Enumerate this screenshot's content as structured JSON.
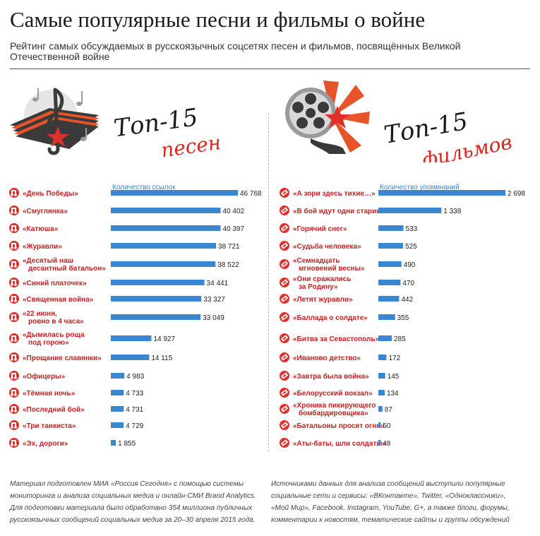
{
  "title": "Самые популярные песни и фильмы о войне",
  "subtitle": "Рейтинг самых обсуждаемых в русскоязычных соцсетях песен и фильмов, посвящённых Великой Отечественной войне",
  "songs_brand": {
    "line1": "Топ-15",
    "line2": "песен"
  },
  "films_brand": {
    "line1": "Топ-15",
    "line2": "фильмов"
  },
  "colors": {
    "bar": "#3a86d0",
    "accent": "#e0302a",
    "text": "#c52020"
  },
  "icons": {
    "song": "music-note-icon",
    "film": "film-reel-icon"
  },
  "chart_data": [
    {
      "type": "bar",
      "orientation": "horizontal",
      "subject": "songs",
      "series_label": "Количество ссылок",
      "categories": [
        [
          "«День Победы»"
        ],
        [
          "«Смуглянка»"
        ],
        [
          "«Катюша»"
        ],
        [
          "«Журавли»"
        ],
        [
          "«Десятый наш",
          "десантный батальон»"
        ],
        [
          "«Синий платочек»"
        ],
        [
          "«Священная война»"
        ],
        [
          "«22 июня,",
          "ровно в 4 часа»"
        ],
        [
          "«Дымилась роща",
          "под горою»"
        ],
        [
          "«Прощание славянки»"
        ],
        [
          "«Офицеры»"
        ],
        [
          "«Тёмная ночь»"
        ],
        [
          "«Последний бой»"
        ],
        [
          "«Три танкиста»"
        ],
        [
          "«Эх, дороги»"
        ]
      ],
      "values": [
        46768,
        40402,
        40397,
        38721,
        38522,
        34441,
        33327,
        33049,
        14927,
        14115,
        4983,
        4733,
        4731,
        4729,
        1855
      ],
      "value_labels": [
        "46 768",
        "40 402",
        "40 397",
        "38 721",
        "38 522",
        "34 441",
        "33 327",
        "33 049",
        "14 927",
        "14 115",
        "4 983",
        "4 733",
        "4 731",
        "4 729",
        "1 855"
      ]
    },
    {
      "type": "bar",
      "orientation": "horizontal",
      "subject": "films",
      "series_label": "Количество упоминаний",
      "categories": [
        [
          "«А зори здесь тихие…»"
        ],
        [
          "«В бой идут одни старики»"
        ],
        [
          "«Горячий снег»"
        ],
        [
          "«Судьба человека»"
        ],
        [
          "«Семнадцать",
          "мгновений весны»"
        ],
        [
          "«Они сражались",
          "за Родину»"
        ],
        [
          "«Летят журавли»"
        ],
        [
          "«Баллада о солдате»"
        ],
        [
          "«Битва за Севастополь»"
        ],
        [
          "«Иваново детство»"
        ],
        [
          "«Завтра была война»"
        ],
        [
          "«Белорусский вокзал»"
        ],
        [
          "«Хроника пикирующего",
          "бомбардировщика»"
        ],
        [
          "«Батальоны просят огня»"
        ],
        [
          "«Аты-баты, шли солдаты»"
        ]
      ],
      "values": [
        2698,
        1338,
        533,
        525,
        490,
        470,
        442,
        355,
        285,
        172,
        145,
        134,
        87,
        50,
        48
      ],
      "value_labels": [
        "2 698",
        "1 338",
        "533",
        "525",
        "490",
        "470",
        "442",
        "355",
        "285",
        "172",
        "145",
        "134",
        "87",
        "50",
        "48"
      ]
    }
  ],
  "footer": {
    "left": "Материал подготовлен МИА «Россия Сегодня» с помощью системы мониторинга и анализа социальных медиа и онлайн-СМИ Brand Analytics. Для подготовки материала было обработано 354 миллиона публичных русскоязычных сообщений социальных медиа за 20–30 апреля 2015 года.",
    "right": "Источниками данных для анализа сообщений выступили популярные социальные сети и сервисы: «ВКонтакте», Twitter, «Одноклассники», «Мой Мир», Facebook, Instagram, YouTube, G+, а также блоги, форумы, комментарии к новостям, тематические сайты и группы обсуждений"
  }
}
